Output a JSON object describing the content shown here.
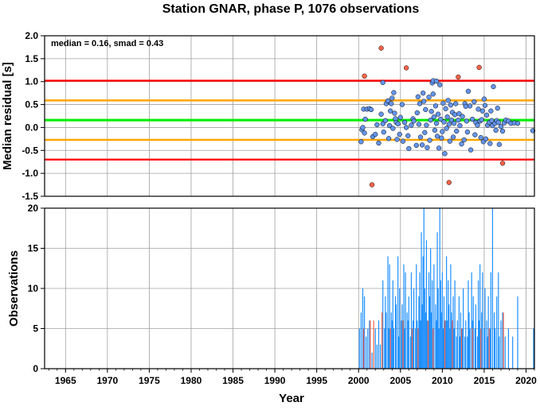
{
  "chart_data": [
    {
      "type": "scatter",
      "title": "Station GNAR, phase P, 1076 observations",
      "ylabel": "Median residual [s]",
      "xlim": [
        1962.5,
        2021
      ],
      "ylim": [
        -1.5,
        2.0
      ],
      "y_ticks": [
        "2.0",
        "1.5",
        "1.0",
        "0.5",
        "0.0",
        "-0.5",
        "-1.0",
        "-1.5"
      ],
      "grid": true,
      "annotation": "median = 0.16, smad = 0.43",
      "reference_lines": [
        {
          "kind": "median",
          "value": 0.16,
          "color": "#00ee00"
        },
        {
          "kind": "inner",
          "value": 0.59,
          "color": "#ffa500"
        },
        {
          "kind": "inner",
          "value": -0.27,
          "color": "#ffa500"
        },
        {
          "kind": "outer",
          "value": 1.02,
          "color": "#ff0000"
        },
        {
          "kind": "outer",
          "value": -0.7,
          "color": "#ff0000"
        }
      ],
      "point_colors": {
        "inlier": "#6495ed",
        "outlier": "#ff6347"
      },
      "points": [
        [
          2000.3,
          -0.31
        ],
        [
          2000.4,
          -0.05
        ],
        [
          2000.5,
          0.0
        ],
        [
          2000.6,
          0.4
        ],
        [
          2000.7,
          -0.12
        ],
        [
          2000.8,
          0.18
        ],
        [
          2001.0,
          0.4
        ],
        [
          2001.3,
          0.41
        ],
        [
          2001.5,
          0.39
        ],
        [
          2001.7,
          -0.2
        ],
        [
          2002.0,
          -0.15
        ],
        [
          2002.2,
          0.06
        ],
        [
          2002.4,
          -0.34
        ],
        [
          2002.7,
          0.29
        ],
        [
          2002.9,
          0.08
        ],
        [
          2003.0,
          -0.1
        ],
        [
          2003.2,
          0.15
        ],
        [
          2003.3,
          0.52
        ],
        [
          2003.5,
          0.58
        ],
        [
          2003.6,
          -0.24
        ],
        [
          2003.7,
          0.04
        ],
        [
          2003.8,
          0.36
        ],
        [
          2003.9,
          0.52
        ],
        [
          2004.0,
          0.64
        ],
        [
          2004.1,
          -0.02
        ],
        [
          2004.2,
          0.76
        ],
        [
          2004.3,
          0.31
        ],
        [
          2004.4,
          0.19
        ],
        [
          2004.5,
          0.11
        ],
        [
          2004.6,
          -0.26
        ],
        [
          2004.7,
          0.08
        ],
        [
          2004.9,
          -0.15
        ],
        [
          2005.0,
          0.22
        ],
        [
          2005.2,
          0.5
        ],
        [
          2005.3,
          -0.3
        ],
        [
          2005.5,
          0.11
        ],
        [
          2005.7,
          0.0
        ],
        [
          2005.9,
          -0.18
        ],
        [
          2006.0,
          -0.46
        ],
        [
          2006.3,
          0.05
        ],
        [
          2006.5,
          0.19
        ],
        [
          2006.6,
          0.14
        ],
        [
          2006.9,
          -0.39
        ],
        [
          2007.0,
          0.32
        ],
        [
          2007.1,
          0.67
        ],
        [
          2007.2,
          0.07
        ],
        [
          2007.3,
          0.52
        ],
        [
          2007.4,
          -0.21
        ],
        [
          2007.6,
          -0.38
        ],
        [
          2007.7,
          0.75
        ],
        [
          2007.8,
          0.57
        ],
        [
          2007.9,
          -0.11
        ],
        [
          2008.0,
          0.39
        ],
        [
          2008.1,
          0.05
        ],
        [
          2008.2,
          -0.44
        ],
        [
          2008.4,
          0.66
        ],
        [
          2008.5,
          -0.28
        ],
        [
          2008.6,
          0.16
        ],
        [
          2008.7,
          0.35
        ],
        [
          2008.8,
          0.97
        ],
        [
          2008.9,
          0.73
        ],
        [
          2009.0,
          0.23
        ],
        [
          2009.1,
          -0.06
        ],
        [
          2009.2,
          0.47
        ],
        [
          2009.3,
          0.09
        ],
        [
          2009.4,
          -0.19
        ],
        [
          2009.5,
          0.29
        ],
        [
          2009.6,
          -0.45
        ],
        [
          2009.7,
          0.93
        ],
        [
          2009.8,
          0.18
        ],
        [
          2009.9,
          -0.23
        ],
        [
          2010.0,
          -0.09
        ],
        [
          2010.1,
          0.53
        ],
        [
          2010.2,
          0.12
        ],
        [
          2010.3,
          -0.57
        ],
        [
          2010.4,
          0.41
        ],
        [
          2010.5,
          -0.02
        ],
        [
          2010.6,
          0.23
        ],
        [
          2010.7,
          0.59
        ],
        [
          2010.8,
          0.07
        ],
        [
          2010.9,
          -0.3
        ],
        [
          2011.0,
          0.49
        ],
        [
          2011.1,
          0.16
        ],
        [
          2011.2,
          0.33
        ],
        [
          2011.3,
          -0.21
        ],
        [
          2011.4,
          0.09
        ],
        [
          2011.5,
          0.28
        ],
        [
          2011.6,
          0.52
        ],
        [
          2011.7,
          -0.08
        ],
        [
          2011.9,
          0.16
        ],
        [
          2012.0,
          0.3
        ],
        [
          2012.1,
          0.04
        ],
        [
          2012.3,
          -0.36
        ],
        [
          2012.4,
          0.24
        ],
        [
          2012.6,
          -0.27
        ],
        [
          2012.7,
          0.52
        ],
        [
          2012.8,
          0.46
        ],
        [
          2012.9,
          0.14
        ],
        [
          2013.0,
          -0.1
        ],
        [
          2013.1,
          0.79
        ],
        [
          2013.3,
          0.47
        ],
        [
          2013.4,
          -0.49
        ],
        [
          2013.6,
          0.18
        ],
        [
          2013.8,
          0.56
        ],
        [
          2013.9,
          -0.16
        ],
        [
          2014.0,
          0.11
        ],
        [
          2014.2,
          0.05
        ],
        [
          2014.3,
          0.4
        ],
        [
          2014.5,
          0.14
        ],
        [
          2014.6,
          -0.22
        ],
        [
          2014.7,
          0.17
        ],
        [
          2014.8,
          0.36
        ],
        [
          2014.9,
          -0.31
        ],
        [
          2015.0,
          0.62
        ],
        [
          2015.1,
          0.48
        ],
        [
          2015.2,
          -0.25
        ],
        [
          2015.3,
          0.27
        ],
        [
          2015.4,
          0.05
        ],
        [
          2015.6,
          0.11
        ],
        [
          2015.7,
          -0.35
        ],
        [
          2015.8,
          0.36
        ],
        [
          2015.9,
          0.15
        ],
        [
          2016.0,
          0.04
        ],
        [
          2016.1,
          0.89
        ],
        [
          2016.3,
          0.09
        ],
        [
          2016.4,
          -0.06
        ],
        [
          2016.5,
          0.15
        ],
        [
          2016.6,
          0.42
        ],
        [
          2016.7,
          0.11
        ],
        [
          2016.8,
          -0.37
        ],
        [
          2017.0,
          0.02
        ],
        [
          2017.2,
          -0.08
        ],
        [
          2017.4,
          0.1
        ],
        [
          2017.6,
          0.16
        ],
        [
          2017.9,
          0.14
        ],
        [
          2018.2,
          0.09
        ],
        [
          2018.6,
          0.1
        ],
        [
          2019.0,
          0.09
        ],
        [
          2020.8,
          -0.07
        ],
        [
          2000.7,
          1.12
        ],
        [
          2001.6,
          -1.25
        ],
        [
          2002.7,
          1.73
        ],
        [
          2002.9,
          0.98
        ],
        [
          2005.7,
          1.3
        ],
        [
          2008.9,
          1.02
        ],
        [
          2009.3,
          1.01
        ],
        [
          2010.8,
          -1.2
        ],
        [
          2011.9,
          1.1
        ],
        [
          2014.4,
          1.31
        ],
        [
          2017.2,
          -0.78
        ]
      ]
    },
    {
      "type": "bar",
      "xlabel": "Year",
      "ylabel": "Observations",
      "xlim": [
        1962.5,
        2021
      ],
      "ylim": [
        0,
        20
      ],
      "x_ticks": [
        "1965",
        "1970",
        "1975",
        "1980",
        "1985",
        "1990",
        "1995",
        "2000",
        "2005",
        "2010",
        "2015",
        "2020"
      ],
      "y_ticks": [
        "0",
        "5",
        "10",
        "15",
        "20"
      ],
      "grid": true,
      "series": [
        {
          "color": "#1e90ff",
          "bars": [
            [
              2000.1,
              5
            ],
            [
              2000.3,
              7
            ],
            [
              2000.5,
              10
            ],
            [
              2000.7,
              9
            ],
            [
              2000.9,
              4
            ],
            [
              2001.1,
              5
            ],
            [
              2001.3,
              6
            ],
            [
              2001.6,
              2
            ],
            [
              2002.0,
              5
            ],
            [
              2002.2,
              3
            ],
            [
              2002.4,
              6
            ],
            [
              2002.6,
              3
            ],
            [
              2002.8,
              5
            ],
            [
              2002.9,
              11
            ],
            [
              2003.1,
              5
            ],
            [
              2003.2,
              9
            ],
            [
              2003.3,
              7
            ],
            [
              2003.5,
              14
            ],
            [
              2003.6,
              5
            ],
            [
              2003.7,
              13
            ],
            [
              2003.9,
              7
            ],
            [
              2004.0,
              6
            ],
            [
              2004.1,
              11
            ],
            [
              2004.2,
              5
            ],
            [
              2004.4,
              9
            ],
            [
              2004.5,
              8
            ],
            [
              2004.7,
              14
            ],
            [
              2004.8,
              4
            ],
            [
              2004.9,
              10
            ],
            [
              2005.1,
              6
            ],
            [
              2005.2,
              8
            ],
            [
              2005.4,
              13
            ],
            [
              2005.5,
              5
            ],
            [
              2005.6,
              12
            ],
            [
              2005.8,
              7
            ],
            [
              2005.9,
              6
            ],
            [
              2006.0,
              9
            ],
            [
              2006.2,
              4
            ],
            [
              2006.3,
              12
            ],
            [
              2006.5,
              6
            ],
            [
              2006.6,
              10
            ],
            [
              2006.8,
              5
            ],
            [
              2006.9,
              13
            ],
            [
              2007.0,
              6
            ],
            [
              2007.2,
              9
            ],
            [
              2007.3,
              12
            ],
            [
              2007.4,
              6
            ],
            [
              2007.5,
              17
            ],
            [
              2007.6,
              8
            ],
            [
              2007.7,
              14
            ],
            [
              2007.8,
              20
            ],
            [
              2007.9,
              10
            ],
            [
              2008.0,
              7
            ],
            [
              2008.1,
              16
            ],
            [
              2008.2,
              6
            ],
            [
              2008.4,
              12
            ],
            [
              2008.5,
              9
            ],
            [
              2008.6,
              15
            ],
            [
              2008.7,
              7
            ],
            [
              2008.8,
              11
            ],
            [
              2008.9,
              5
            ],
            [
              2009.0,
              13
            ],
            [
              2009.2,
              8
            ],
            [
              2009.3,
              6
            ],
            [
              2009.4,
              17
            ],
            [
              2009.5,
              10
            ],
            [
              2009.6,
              5
            ],
            [
              2009.7,
              20
            ],
            [
              2009.8,
              11
            ],
            [
              2009.9,
              7
            ],
            [
              2010.0,
              12
            ],
            [
              2010.1,
              5
            ],
            [
              2010.2,
              9
            ],
            [
              2010.4,
              6
            ],
            [
              2010.5,
              14
            ],
            [
              2010.6,
              6
            ],
            [
              2010.7,
              11
            ],
            [
              2010.8,
              8
            ],
            [
              2010.9,
              5
            ],
            [
              2011.0,
              13
            ],
            [
              2011.1,
              7
            ],
            [
              2011.3,
              9
            ],
            [
              2011.4,
              5
            ],
            [
              2011.5,
              11
            ],
            [
              2011.7,
              4
            ],
            [
              2011.8,
              6
            ],
            [
              2012.0,
              9
            ],
            [
              2012.1,
              4
            ],
            [
              2012.2,
              7
            ],
            [
              2012.4,
              5
            ],
            [
              2012.5,
              10
            ],
            [
              2012.7,
              4
            ],
            [
              2012.8,
              6
            ],
            [
              2013.0,
              4
            ],
            [
              2013.1,
              11
            ],
            [
              2013.2,
              7
            ],
            [
              2013.3,
              5
            ],
            [
              2013.5,
              12
            ],
            [
              2013.6,
              6
            ],
            [
              2013.7,
              9
            ],
            [
              2013.9,
              5
            ],
            [
              2014.0,
              8
            ],
            [
              2014.2,
              4
            ],
            [
              2014.3,
              11
            ],
            [
              2014.4,
              6
            ],
            [
              2014.5,
              13
            ],
            [
              2014.7,
              7
            ],
            [
              2014.8,
              12
            ],
            [
              2015.0,
              5
            ],
            [
              2015.1,
              10
            ],
            [
              2015.3,
              6
            ],
            [
              2015.4,
              4
            ],
            [
              2015.5,
              9
            ],
            [
              2015.7,
              5
            ],
            [
              2015.8,
              12
            ],
            [
              2016.0,
              20
            ],
            [
              2016.2,
              7
            ],
            [
              2016.3,
              5
            ],
            [
              2016.5,
              9
            ],
            [
              2016.7,
              12
            ],
            [
              2016.8,
              4
            ],
            [
              2017.0,
              6
            ],
            [
              2017.2,
              7
            ],
            [
              2017.5,
              4
            ],
            [
              2017.9,
              5
            ],
            [
              2018.4,
              4
            ],
            [
              2019.0,
              9
            ],
            [
              2020.9,
              5
            ]
          ]
        },
        {
          "color": "#ff6347",
          "bars": [
            [
              2000.6,
              5
            ],
            [
              2001.4,
              6
            ],
            [
              2001.8,
              6
            ],
            [
              2002.8,
              7
            ],
            [
              2003.8,
              5
            ],
            [
              2005.3,
              6
            ],
            [
              2006.4,
              5
            ],
            [
              2007.1,
              5
            ],
            [
              2008.3,
              6
            ],
            [
              2008.9,
              5
            ],
            [
              2010.3,
              6
            ],
            [
              2011.2,
              6
            ],
            [
              2012.3,
              5
            ],
            [
              2013.6,
              5
            ],
            [
              2014.6,
              5
            ],
            [
              2015.6,
              5
            ],
            [
              2017.3,
              7
            ]
          ]
        }
      ]
    }
  ]
}
